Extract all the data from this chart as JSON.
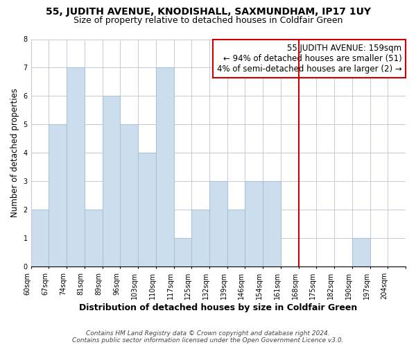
{
  "title": "55, JUDITH AVENUE, KNODISHALL, SAXMUNDHAM, IP17 1UY",
  "subtitle": "Size of property relative to detached houses in Coldfair Green",
  "xlabel": "Distribution of detached houses by size in Coldfair Green",
  "ylabel": "Number of detached properties",
  "bin_labels": [
    "60sqm",
    "67sqm",
    "74sqm",
    "81sqm",
    "89sqm",
    "96sqm",
    "103sqm",
    "110sqm",
    "117sqm",
    "125sqm",
    "132sqm",
    "139sqm",
    "146sqm",
    "154sqm",
    "161sqm",
    "168sqm",
    "175sqm",
    "182sqm",
    "190sqm",
    "197sqm",
    "204sqm"
  ],
  "bar_heights": [
    2,
    5,
    7,
    2,
    6,
    5,
    4,
    7,
    1,
    2,
    3,
    2,
    3,
    3,
    0,
    0,
    0,
    0,
    1,
    0,
    0
  ],
  "bar_color": "#ccdded",
  "bar_edgecolor": "#a8c4d8",
  "bar_linewidth": 0.8,
  "grid_color": "#c8c8d8",
  "vline_bin": 14,
  "vline_color": "#cc0000",
  "vline_linewidth": 1.5,
  "annotation_title": "55 JUDITH AVENUE: 159sqm",
  "annotation_line1": "← 94% of detached houses are smaller (51)",
  "annotation_line2": "4% of semi-detached houses are larger (2) →",
  "annotation_box_facecolor": "#ffffff",
  "annotation_box_edgecolor": "#cc0000",
  "ylim": [
    0,
    8
  ],
  "yticks": [
    0,
    1,
    2,
    3,
    4,
    5,
    6,
    7,
    8
  ],
  "footer_line1": "Contains HM Land Registry data © Crown copyright and database right 2024.",
  "footer_line2": "Contains public sector information licensed under the Open Government Licence v3.0.",
  "title_fontsize": 10,
  "subtitle_fontsize": 9,
  "xlabel_fontsize": 9,
  "ylabel_fontsize": 8.5,
  "tick_fontsize": 7,
  "footer_fontsize": 6.5,
  "annotation_fontsize": 8.5,
  "background_color": "#ffffff"
}
